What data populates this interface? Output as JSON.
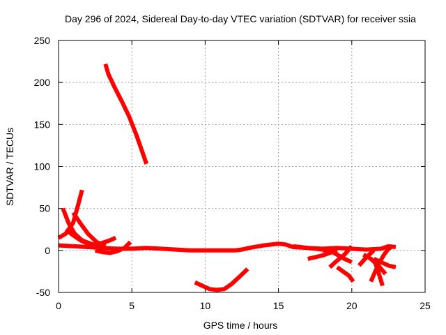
{
  "chart_data": {
    "type": "line",
    "title": "Day 296 of 2024, Sidereal Day-to-day VTEC variation (SDTVAR) for receiver ssia",
    "xlabel": "GPS time / hours",
    "ylabel": "SDTVAR / TECUs",
    "xlim": [
      0,
      25
    ],
    "ylim": [
      -50,
      250
    ],
    "xticks": [
      0,
      5,
      10,
      15,
      20,
      25
    ],
    "yticks": [
      -50,
      0,
      50,
      100,
      150,
      200,
      250
    ],
    "grid": true,
    "series_color": "#ff0000",
    "series": [
      {
        "name": "arc-high",
        "x": [
          3.2,
          3.4,
          3.8,
          4.3,
          4.8,
          5.3,
          5.7,
          6.0
        ],
        "y": [
          222,
          210,
          195,
          178,
          160,
          138,
          118,
          103
        ]
      },
      {
        "name": "arc-low",
        "x": [
          9.3,
          9.8,
          10.3,
          10.8,
          11.3,
          11.8,
          12.3,
          12.9
        ],
        "y": [
          -38,
          -42,
          -46,
          -47,
          -46,
          -40,
          -32,
          -22
        ]
      },
      {
        "name": "arc-peak-72",
        "x": [
          0.0,
          0.5,
          1.0,
          1.3,
          1.6
        ],
        "y": [
          15,
          20,
          33,
          52,
          72
        ]
      },
      {
        "name": "arc-peak-50",
        "x": [
          0.3,
          0.7,
          1.1,
          1.6,
          2.2,
          2.8
        ],
        "y": [
          50,
          32,
          20,
          12,
          8,
          5
        ]
      },
      {
        "name": "arc-peak-45",
        "x": [
          1.0,
          1.5,
          2.0,
          2.6,
          3.2
        ],
        "y": [
          45,
          32,
          20,
          10,
          5
        ]
      },
      {
        "name": "arc-early-a",
        "x": [
          0.5,
          1.0,
          1.5,
          2.0,
          2.5
        ],
        "y": [
          25,
          18,
          12,
          8,
          5
        ]
      },
      {
        "name": "arc-early-b",
        "x": [
          2.0,
          2.5,
          3.0,
          3.5,
          3.9
        ],
        "y": [
          5,
          7,
          9,
          12,
          15
        ]
      },
      {
        "name": "arc-early-c",
        "x": [
          2.5,
          3.0,
          3.5,
          4.0,
          4.5,
          4.9
        ],
        "y": [
          0,
          -2,
          -3,
          -1,
          3,
          10
        ]
      },
      {
        "name": "baseline-main",
        "x": [
          0.0,
          1.0,
          2.0,
          3.0,
          4.0,
          5.0,
          6.0,
          7.0,
          8.0,
          9.0,
          10.0,
          11.0,
          12.0,
          12.5,
          13.0,
          14.0,
          15.0,
          15.5,
          16.0,
          17.0,
          18.0,
          19.0,
          20.0,
          21.0,
          22.0,
          22.5,
          23.0
        ],
        "y": [
          6,
          5,
          4,
          3,
          2,
          2,
          3,
          2,
          1,
          0,
          0,
          0,
          0,
          1,
          3,
          6,
          8,
          7,
          4,
          3,
          2,
          3,
          2,
          1,
          2,
          5,
          4
        ]
      },
      {
        "name": "segment-17",
        "x": [
          16.0,
          16.5,
          17.0,
          17.5,
          18.0
        ],
        "y": [
          5,
          4,
          3,
          2,
          1
        ]
      },
      {
        "name": "segment-18",
        "x": [
          17.0,
          17.5,
          18.0,
          18.5,
          19.0
        ],
        "y": [
          -10,
          -8,
          -6,
          -3,
          0
        ]
      },
      {
        "name": "segment-19a",
        "x": [
          18.5,
          19.0,
          19.5,
          20.0
        ],
        "y": [
          -20,
          -12,
          -5,
          5
        ]
      },
      {
        "name": "segment-19b",
        "x": [
          18.0,
          18.5,
          19.0,
          19.5,
          20.0
        ],
        "y": [
          0,
          0,
          -5,
          -10,
          -14
        ]
      },
      {
        "name": "segment-20",
        "x": [
          19.0,
          19.4,
          19.8,
          20.1
        ],
        "y": [
          -20,
          -25,
          -30,
          -37
        ]
      },
      {
        "name": "segment-21a",
        "x": [
          20.5,
          21.0,
          21.5
        ],
        "y": [
          -18,
          -8,
          0
        ]
      },
      {
        "name": "segment-21b",
        "x": [
          20.8,
          21.3,
          21.8,
          22.3
        ],
        "y": [
          -5,
          -10,
          -18,
          -28
        ]
      },
      {
        "name": "segment-22a",
        "x": [
          21.3,
          21.6,
          21.9,
          22.2,
          22.5,
          22.8
        ],
        "y": [
          -37,
          -25,
          -14,
          -5,
          2,
          5
        ]
      },
      {
        "name": "segment-22b",
        "x": [
          21.5,
          21.8,
          22.1
        ],
        "y": [
          -10,
          -25,
          -42
        ]
      },
      {
        "name": "segment-22c",
        "x": [
          21.5,
          22.0,
          22.5,
          23.0
        ],
        "y": [
          -10,
          -14,
          -18,
          -20
        ]
      }
    ]
  }
}
